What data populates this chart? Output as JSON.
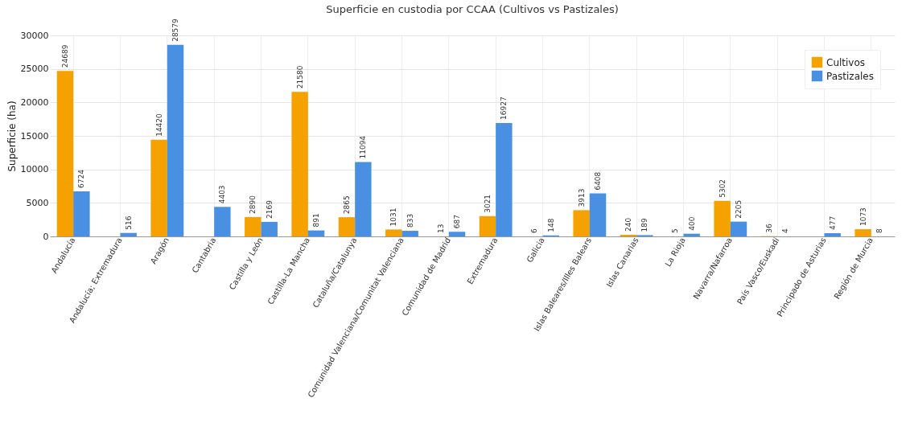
{
  "chart_data": {
    "type": "bar",
    "title": "Superficie en custodia por CCAA (Cultivos vs Pastizales)",
    "ylabel": "Superficie (ha)",
    "categories": [
      "Andalucía",
      "Andalucía; Extremadura",
      "Aragón",
      "Cantabria",
      "Castilla y León",
      "Castilla-La Mancha",
      "Cataluña/Catalunya",
      "Comunidad Valenciana/Comunitat Valenciana",
      "Comunidad de Madrid",
      "Extremadura",
      "Galicia",
      "Islas Baleares/Illes Balears",
      "Islas Canarias",
      "La Rioja",
      "Navarra/Nafarroa",
      "País Vasco/Euskadi",
      "Principado de Asturias",
      "Región de Murcia"
    ],
    "series": [
      {
        "name": "Cultivos",
        "color": "#f5a100",
        "values": [
          24689,
          null,
          14420,
          null,
          2890,
          21580,
          2865,
          1031,
          13,
          3021,
          6,
          3913,
          240,
          5,
          5302,
          36,
          null,
          1073
        ]
      },
      {
        "name": "Pastizales",
        "color": "#4a90e2",
        "values": [
          6724,
          516,
          28579,
          4403,
          2169,
          891,
          11094,
          833,
          687,
          16927,
          148,
          6408,
          189,
          400,
          2205,
          4,
          477,
          8
        ]
      }
    ],
    "ylim": [
      0,
      30000
    ],
    "yticks": [
      0,
      5000,
      10000,
      15000,
      20000,
      25000,
      30000
    ],
    "grid": true,
    "legend": "top right",
    "data_labels": true
  }
}
